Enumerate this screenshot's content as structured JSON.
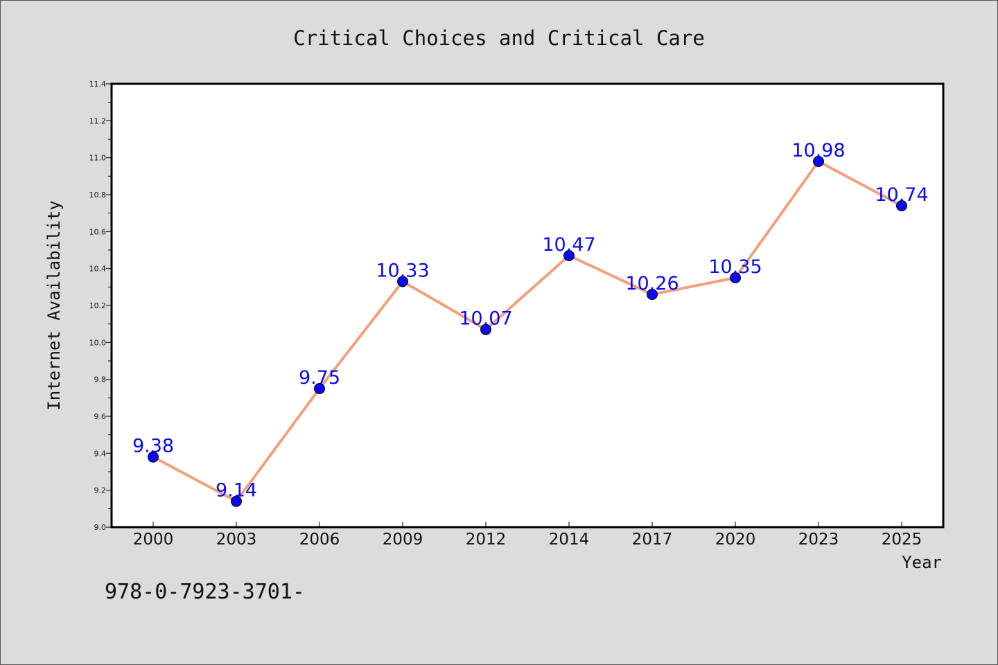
{
  "chart_data": {
    "type": "line",
    "title": "Critical Choices and Critical Care",
    "xlabel": "Year",
    "ylabel": "Internet Availability",
    "categories": [
      "2000",
      "2003",
      "2006",
      "2009",
      "2012",
      "2014",
      "2017",
      "2020",
      "2023",
      "2025"
    ],
    "series": [
      {
        "values": [
          9.38,
          9.14,
          9.75,
          10.33,
          10.07,
          10.47,
          10.26,
          10.35,
          10.98,
          10.74
        ]
      }
    ],
    "data_labels": [
      "9.38",
      "9.14",
      "9.75",
      "10.33",
      "10.07",
      "10.47",
      "10.26",
      "10.35",
      "10.98",
      "10.74"
    ],
    "ylim": [
      9.0,
      11.4
    ],
    "y_ticks": [
      "9.0",
      "9.2",
      "9.4",
      "9.6",
      "9.8",
      "10.0",
      "10.2",
      "10.4",
      "10.6",
      "10.8",
      "11.0",
      "11.2",
      "11.4"
    ],
    "grid": false,
    "line_color": "#f4a07a",
    "marker_color": "#0a0af0",
    "label_color": "#0a0af0",
    "background": "#dcdcdc",
    "plot_background": "#ffffff"
  },
  "footer_text": "978-0-7923-3701-"
}
